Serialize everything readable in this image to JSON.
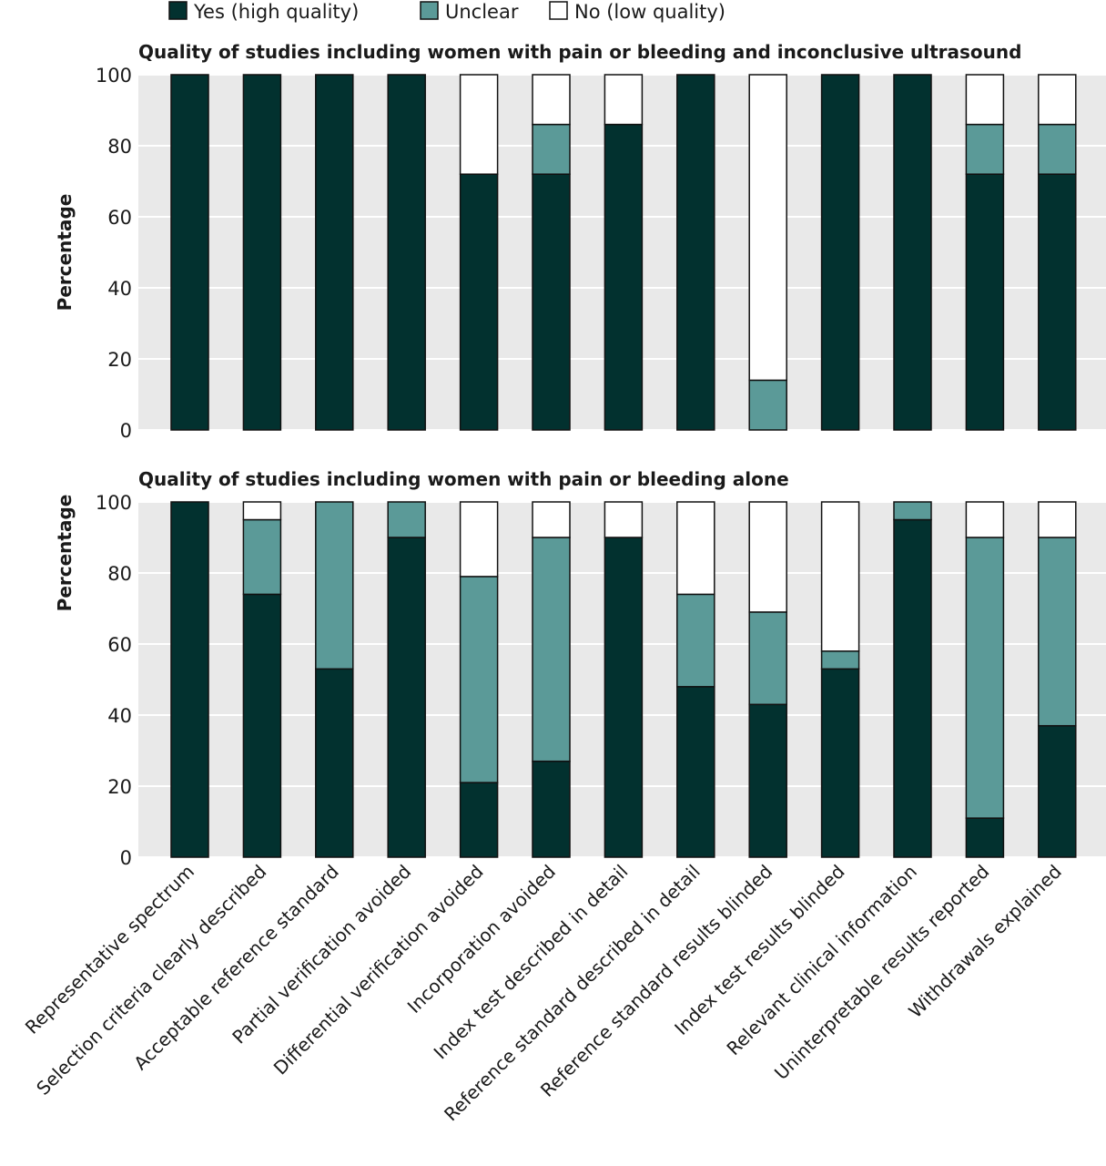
{
  "legend": [
    {
      "key": "yes",
      "label": "Yes (high quality)",
      "color": "#02312f"
    },
    {
      "key": "unclear",
      "label": "Unclear",
      "color": "#5b9a98"
    },
    {
      "key": "no",
      "label": "No (low quality)",
      "color": "#ffffff"
    }
  ],
  "colors": {
    "panel_bg": "#e9e9e9",
    "stroke": "#111111"
  },
  "chart_data": [
    {
      "type": "bar",
      "stacked": true,
      "title": "Quality of studies including women with pain or bleeding and inconclusive ultrasound",
      "xlabel": "",
      "ylabel": "Percentage",
      "ylim": [
        0,
        100
      ],
      "yticks": [
        0,
        20,
        40,
        60,
        80,
        100
      ],
      "categories": [
        "Representative spectrum",
        "Selection criteria clearly described",
        "Acceptable reference standard",
        "Partial verification avoided",
        "Differential verification avoided",
        "Incorporation avoided",
        "Index test described in detail",
        "Reference standard described in detail",
        "Reference standard results blinded",
        "Index test results blinded",
        "Relevant clinical information",
        "Uninterpretable results reported",
        "Withdrawals explained"
      ],
      "series": [
        {
          "name": "Yes (high quality)",
          "values": [
            100,
            100,
            100,
            100,
            72,
            72,
            86,
            100,
            0,
            100,
            100,
            72,
            72
          ]
        },
        {
          "name": "Unclear",
          "values": [
            0,
            0,
            0,
            0,
            0,
            14,
            0,
            0,
            14,
            0,
            0,
            14,
            14
          ]
        },
        {
          "name": "No (low quality)",
          "values": [
            0,
            0,
            0,
            0,
            28,
            14,
            14,
            0,
            86,
            0,
            0,
            14,
            14
          ]
        }
      ],
      "grid": true
    },
    {
      "type": "bar",
      "stacked": true,
      "title": "Quality of studies including women with pain or bleeding alone",
      "xlabel": "",
      "ylabel": "Percentage",
      "ylim": [
        0,
        100
      ],
      "yticks": [
        0,
        20,
        40,
        60,
        80,
        100
      ],
      "categories": [
        "Representative spectrum",
        "Selection criteria clearly described",
        "Acceptable reference standard",
        "Partial verification avoided",
        "Differential verification avoided",
        "Incorporation avoided",
        "Index test described in detail",
        "Reference standard described in detail",
        "Reference standard results blinded",
        "Index test results blinded",
        "Relevant clinical information",
        "Uninterpretable results reported",
        "Withdrawals explained"
      ],
      "series": [
        {
          "name": "Yes (high quality)",
          "values": [
            100,
            74,
            53,
            90,
            21,
            27,
            90,
            48,
            43,
            53,
            95,
            11,
            37
          ]
        },
        {
          "name": "Unclear",
          "values": [
            0,
            21,
            47,
            10,
            58,
            63,
            0,
            26,
            26,
            5,
            5,
            79,
            53
          ]
        },
        {
          "name": "No (low quality)",
          "values": [
            0,
            5,
            0,
            0,
            21,
            10,
            10,
            26,
            31,
            42,
            0,
            10,
            10
          ]
        }
      ],
      "grid": true
    }
  ]
}
